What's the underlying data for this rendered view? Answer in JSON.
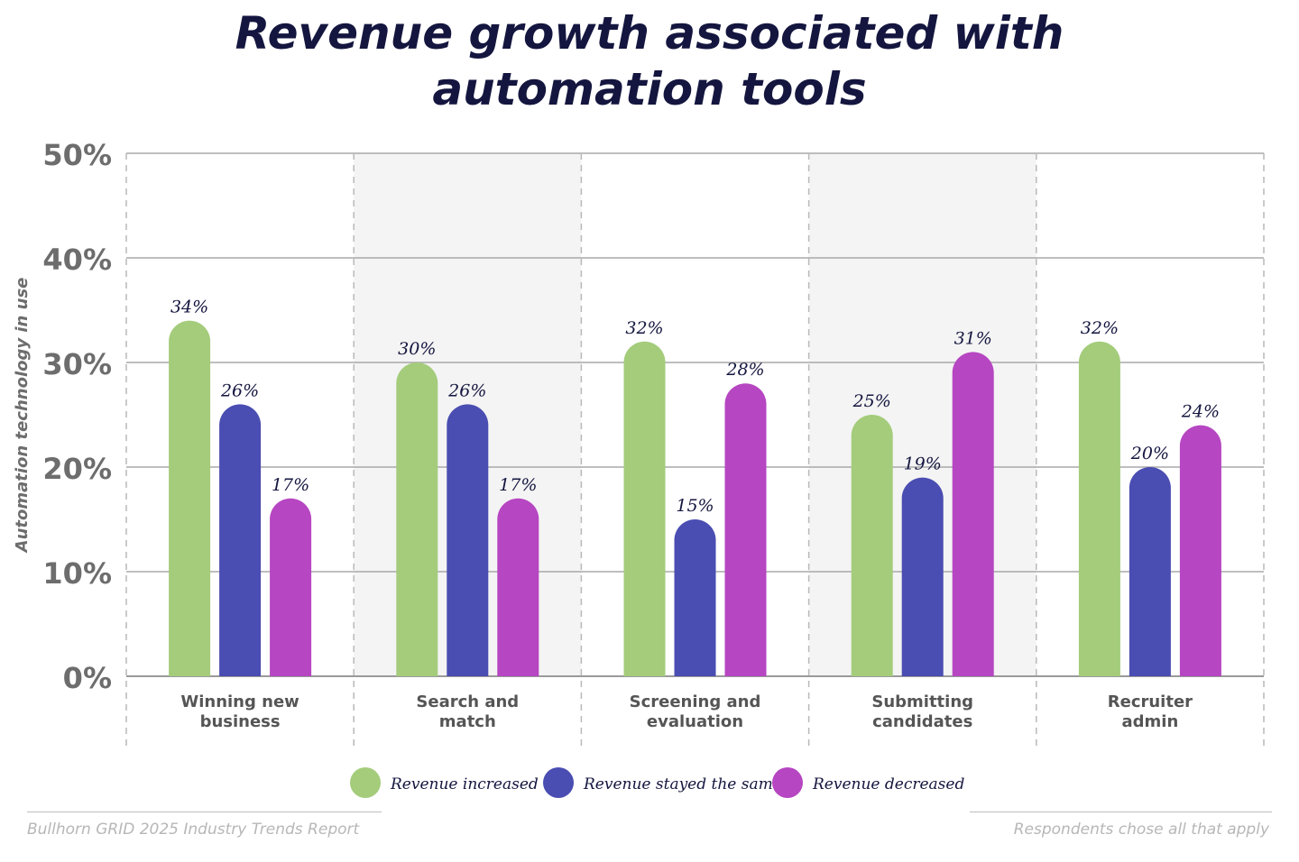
{
  "chart_data": {
    "type": "bar",
    "title_lines": [
      "Revenue growth associated with",
      "automation tools"
    ],
    "ylabel": "Automation technology in use",
    "xlabel": "",
    "ylim": [
      0,
      50
    ],
    "y_ticks": [
      0,
      10,
      20,
      30,
      40,
      50
    ],
    "y_tick_labels": [
      "0%",
      "10%",
      "20%",
      "30%",
      "40%",
      "50%"
    ],
    "categories": [
      [
        "Winning new",
        "business"
      ],
      [
        "Search and",
        "match"
      ],
      [
        "Screening and",
        "evaluation"
      ],
      [
        "Submitting",
        "candidates"
      ],
      [
        "Recruiter",
        "admin"
      ]
    ],
    "series": [
      {
        "name": "Revenue increased",
        "color": "#a4cc7b",
        "values": [
          34,
          30,
          32,
          25,
          32
        ],
        "labels": [
          "34%",
          "30%",
          "32%",
          "25%",
          "32%"
        ]
      },
      {
        "name": "Revenue stayed the same",
        "color": "#4a4db1",
        "values": [
          26,
          26,
          15,
          19,
          20
        ],
        "labels": [
          "26%",
          "26%",
          "15%",
          "19%",
          "20%"
        ]
      },
      {
        "name": "Revenue decreased",
        "color": "#b646c1",
        "values": [
          17,
          17,
          28,
          31,
          24
        ],
        "labels": [
          "17%",
          "17%",
          "28%",
          "31%",
          "24%"
        ]
      }
    ],
    "grid": true,
    "legend_position": "bottom-center",
    "shaded_band_color": "#f4f4f4"
  },
  "footer": {
    "source": "Bullhorn GRID 2025 Industry Trends Report",
    "note": "Respondents chose all that apply"
  }
}
